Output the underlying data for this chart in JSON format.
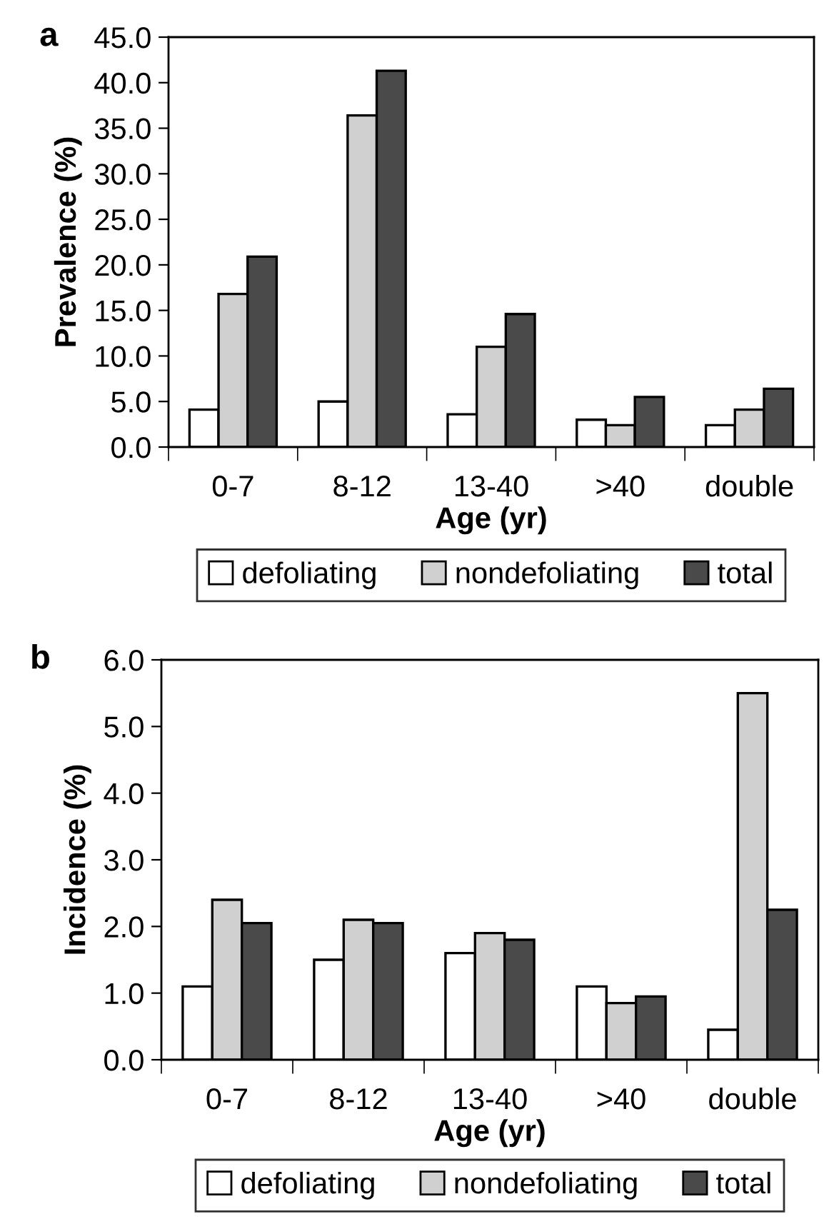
{
  "chart_data": [
    {
      "type": "bar",
      "title": "a",
      "xlabel": "Age (yr)",
      "ylabel": "Prevalence (%)",
      "categories": [
        "0-7",
        "8-12",
        "13-40",
        ">40",
        "double"
      ],
      "series": [
        {
          "name": "defoliating",
          "color": "#ffffff",
          "values": [
            4.1,
            5.0,
            3.6,
            3.0,
            2.4
          ]
        },
        {
          "name": "nondefoliating",
          "color": "#d0d0d0",
          "values": [
            16.8,
            36.4,
            11.0,
            2.4,
            4.1
          ]
        },
        {
          "name": "total",
          "color": "#4a4a4a",
          "values": [
            20.9,
            41.3,
            14.6,
            5.5,
            6.4
          ]
        }
      ],
      "ylim": [
        0,
        45
      ],
      "yticks": [
        {
          "value": 0,
          "label": "0.0"
        },
        {
          "value": 5,
          "label": "5.0"
        },
        {
          "value": 10,
          "label": "10.0"
        },
        {
          "value": 15,
          "label": "15.0"
        },
        {
          "value": 20,
          "label": "20.0"
        },
        {
          "value": 25,
          "label": "25.0"
        },
        {
          "value": 30,
          "label": "30.0"
        },
        {
          "value": 35,
          "label": "35.0"
        },
        {
          "value": 40,
          "label": "40.0"
        },
        {
          "value": 45,
          "label": "45.0"
        }
      ],
      "grid": false,
      "legend": "bottom"
    },
    {
      "type": "bar",
      "title": "b",
      "xlabel": "Age (yr)",
      "ylabel": "Incidence (%)",
      "categories": [
        "0-7",
        "8-12",
        "13-40",
        ">40",
        "double"
      ],
      "series": [
        {
          "name": "defoliating",
          "color": "#ffffff",
          "values": [
            1.1,
            1.5,
            1.6,
            1.1,
            0.45
          ]
        },
        {
          "name": "nondefoliating",
          "color": "#d0d0d0",
          "values": [
            2.4,
            2.1,
            1.9,
            0.85,
            5.5
          ]
        },
        {
          "name": "total",
          "color": "#4a4a4a",
          "values": [
            2.05,
            2.05,
            1.8,
            0.95,
            2.25
          ]
        }
      ],
      "ylim": [
        0,
        6
      ],
      "yticks": [
        {
          "value": 0,
          "label": "0.0"
        },
        {
          "value": 1,
          "label": "1.0"
        },
        {
          "value": 2,
          "label": "2.0"
        },
        {
          "value": 3,
          "label": "3.0"
        },
        {
          "value": 4,
          "label": "4.0"
        },
        {
          "value": 5,
          "label": "5.0"
        },
        {
          "value": 6,
          "label": "6.0"
        }
      ],
      "grid": false,
      "legend": "bottom"
    }
  ]
}
